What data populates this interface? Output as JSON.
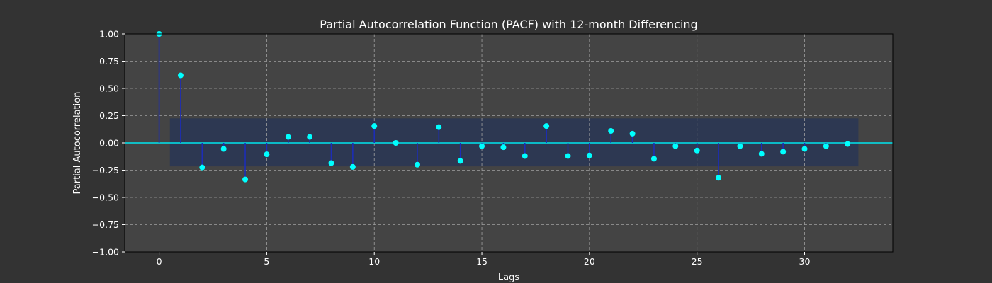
{
  "chart_data": {
    "type": "stem",
    "title": "Partial Autocorrelation Function (PACF) with 12-month Differencing",
    "xlabel": "Lags",
    "ylabel": "Partial Autocorrelation",
    "xlim": [
      -1.6,
      34.1
    ],
    "ylim": [
      -1.0,
      1.0
    ],
    "x_ticks": [
      0,
      5,
      10,
      15,
      20,
      25,
      30
    ],
    "y_ticks": [
      -1.0,
      -0.75,
      -0.5,
      -0.25,
      0.0,
      0.25,
      0.5,
      0.75,
      1.0
    ],
    "y_tick_labels": [
      "−1.00",
      "−0.75",
      "−0.50",
      "−0.25",
      "0.00",
      "0.25",
      "0.50",
      "0.75",
      "1.00"
    ],
    "grid": true,
    "lags": [
      0,
      1,
      2,
      3,
      4,
      5,
      6,
      7,
      8,
      9,
      10,
      11,
      12,
      13,
      14,
      15,
      16,
      17,
      18,
      19,
      20,
      21,
      22,
      23,
      24,
      25,
      26,
      27,
      28,
      29,
      30,
      31,
      32
    ],
    "values": [
      1.0,
      0.62,
      -0.225,
      -0.055,
      -0.335,
      -0.105,
      0.055,
      0.055,
      -0.185,
      -0.22,
      0.155,
      0.0,
      -0.2,
      0.145,
      -0.165,
      -0.03,
      -0.04,
      -0.12,
      0.155,
      -0.12,
      -0.115,
      0.11,
      0.085,
      -0.145,
      -0.03,
      -0.07,
      -0.32,
      -0.03,
      -0.1,
      -0.08,
      -0.055,
      -0.03,
      -0.01
    ],
    "confidence_band": {
      "lower": -0.215,
      "upper": 0.225,
      "x_start": 0.5,
      "x_end": 32.5
    },
    "colors": {
      "figure_bg": "#333333",
      "axes_bg": "#444444",
      "band": "#2d3852",
      "stem": "#1c2db8",
      "marker": "#00ffff",
      "zero_line": "#00e5ee",
      "grid": "#a0a0a0",
      "text": "#ffffff"
    }
  }
}
